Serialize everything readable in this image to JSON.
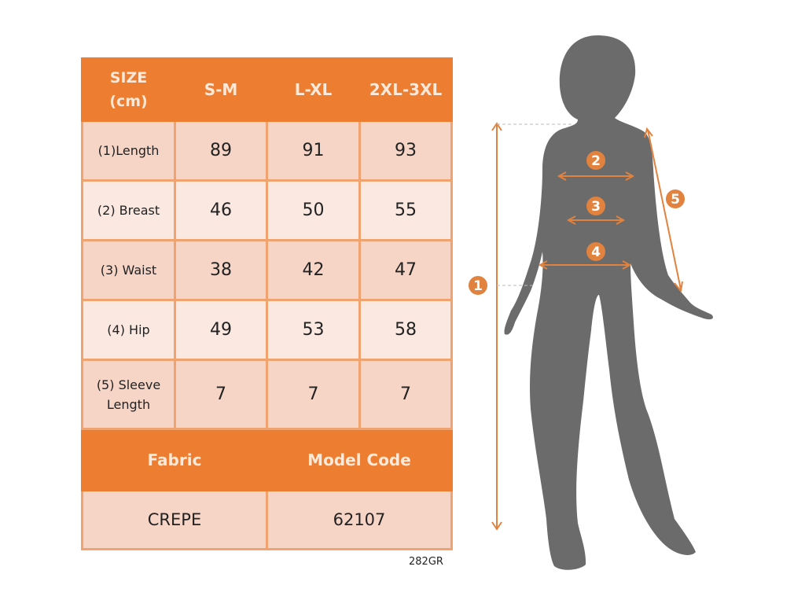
{
  "table": {
    "header": [
      "SIZE (cm)",
      "S-M",
      "L-XL",
      "2XL-3XL"
    ],
    "header_size_lines": [
      "SIZE",
      "(cm)"
    ],
    "rows": [
      {
        "label": "(1)Length",
        "values": [
          "89",
          "91",
          "93"
        ]
      },
      {
        "label": "(2) Breast",
        "values": [
          "46",
          "50",
          "55"
        ]
      },
      {
        "label": "(3) Waist",
        "values": [
          "38",
          "42",
          "47"
        ]
      },
      {
        "label": "(4) Hip",
        "values": [
          "49",
          "53",
          "58"
        ]
      },
      {
        "label": "(5) Sleeve Length",
        "label_lines": [
          "(5) Sleeve",
          "Length"
        ],
        "values": [
          "7",
          "7",
          "7"
        ]
      }
    ],
    "fabric_label": "Fabric",
    "model_code_label": "Model Code",
    "fabric_value": "CREPE",
    "model_code_value": "62107"
  },
  "footer_code": "282GR",
  "figure": {
    "markers": [
      "1",
      "2",
      "3",
      "4",
      "5"
    ]
  },
  "colors": {
    "accent": "#ed7d31",
    "row_dark": "#f6d5c7",
    "row_light": "#fbe8e1",
    "silhouette": "#6b6b6b"
  }
}
